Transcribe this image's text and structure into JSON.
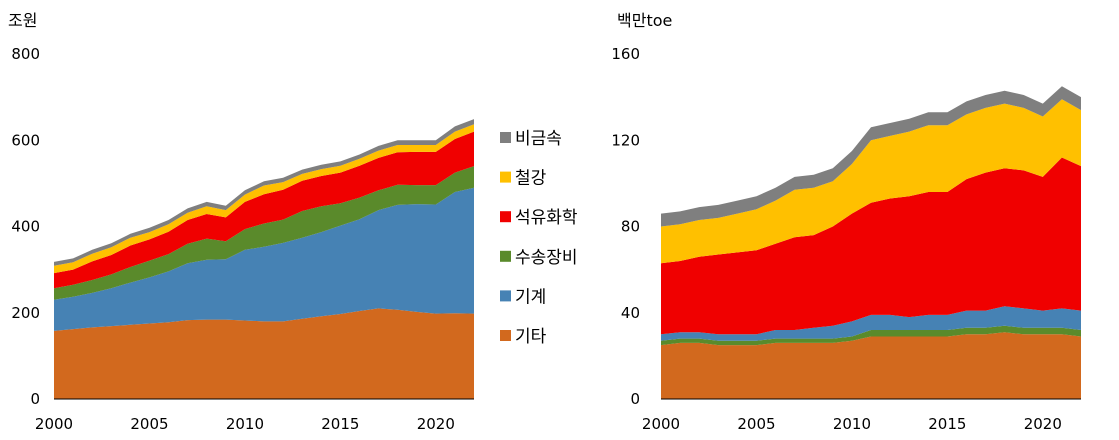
{
  "legend": [
    "비금속",
    "철강",
    "석유화학",
    "수송장비",
    "기계",
    "기타"
  ],
  "colors": {
    "기타": "#D2691E",
    "기계": "#4682B4",
    "수송장비": "#5A8A2B",
    "석유화학": "#F00000",
    "철강": "#FFC000",
    "비금속": "#7F7F7F"
  },
  "chart_data": [
    {
      "type": "area",
      "stacked": true,
      "ylabel": "조원",
      "ylim": [
        0,
        800
      ],
      "yticks": [
        0,
        200,
        400,
        600,
        800
      ],
      "xlim": [
        2000,
        2022
      ],
      "xticks": [
        2000,
        2005,
        2010,
        2015,
        2020
      ],
      "x": [
        2000,
        2001,
        2002,
        2003,
        2004,
        2005,
        2006,
        2007,
        2008,
        2009,
        2010,
        2011,
        2012,
        2013,
        2014,
        2015,
        2016,
        2017,
        2018,
        2019,
        2020,
        2021,
        2022
      ],
      "series": [
        {
          "name": "기타",
          "values": [
            158,
            162,
            166,
            169,
            172,
            175,
            178,
            183,
            184,
            184,
            182,
            180,
            180,
            186,
            192,
            197,
            204,
            210,
            207,
            202,
            198,
            199,
            198
          ]
        },
        {
          "name": "기계",
          "values": [
            72,
            75,
            80,
            88,
            98,
            107,
            118,
            132,
            139,
            140,
            164,
            173,
            182,
            188,
            195,
            205,
            213,
            228,
            243,
            250,
            253,
            281,
            292
          ]
        },
        {
          "name": "수송장비",
          "values": [
            27,
            28,
            30,
            32,
            36,
            39,
            40,
            45,
            49,
            42,
            48,
            54,
            54,
            62,
            60,
            52,
            50,
            46,
            47,
            44,
            45,
            45,
            50
          ]
        },
        {
          "name": "석유화학",
          "values": [
            35,
            35,
            43,
            45,
            50,
            49,
            52,
            55,
            57,
            55,
            63,
            68,
            69,
            70,
            70,
            71,
            74,
            75,
            75,
            77,
            77,
            78,
            80
          ]
        },
        {
          "name": "철강",
          "values": [
            17,
            17,
            18,
            18,
            18,
            17,
            17,
            17,
            18,
            17,
            17,
            20,
            18,
            16,
            16,
            16,
            16,
            17,
            17,
            16,
            16,
            17,
            17
          ]
        },
        {
          "name": "비금속",
          "values": [
            9,
            9,
            9,
            9,
            9,
            10,
            10,
            10,
            10,
            10,
            10,
            10,
            10,
            10,
            10,
            10,
            10,
            11,
            11,
            11,
            11,
            12,
            12
          ]
        }
      ]
    },
    {
      "type": "area",
      "stacked": true,
      "ylabel": "백만toe",
      "ylim": [
        0,
        160
      ],
      "yticks": [
        0,
        40,
        80,
        120,
        160
      ],
      "xlim": [
        2000,
        2022
      ],
      "xticks": [
        2000,
        2005,
        2010,
        2015,
        2020
      ],
      "x": [
        2000,
        2001,
        2002,
        2003,
        2004,
        2005,
        2006,
        2007,
        2008,
        2009,
        2010,
        2011,
        2012,
        2013,
        2014,
        2015,
        2016,
        2017,
        2018,
        2019,
        2020,
        2021,
        2022
      ],
      "series": [
        {
          "name": "기타",
          "values": [
            25,
            26,
            26,
            25,
            25,
            25,
            26,
            26,
            26,
            26,
            27,
            29,
            29,
            29,
            29,
            29,
            30,
            30,
            31,
            30,
            30,
            30,
            29
          ]
        },
        {
          "name": "수송장비",
          "values": [
            2,
            2,
            2,
            2,
            2,
            2,
            2,
            2,
            2,
            2,
            2,
            3,
            3,
            3,
            3,
            3,
            3,
            3,
            3,
            3,
            3,
            3,
            3
          ]
        },
        {
          "name": "기계",
          "values": [
            3,
            3,
            3,
            3,
            3,
            3,
            4,
            4,
            5,
            6,
            7,
            7,
            7,
            6,
            7,
            7,
            8,
            8,
            9,
            9,
            8,
            9,
            9
          ]
        },
        {
          "name": "석유화학",
          "values": [
            33,
            33,
            35,
            37,
            38,
            39,
            40,
            43,
            43,
            46,
            50,
            52,
            54,
            56,
            57,
            57,
            61,
            64,
            64,
            64,
            62,
            70,
            67
          ]
        },
        {
          "name": "철강",
          "values": [
            17,
            17,
            17,
            17,
            18,
            19,
            20,
            22,
            22,
            21,
            23,
            29,
            29,
            30,
            31,
            31,
            30,
            30,
            30,
            29,
            28,
            27,
            26
          ]
        },
        {
          "name": "비금속",
          "values": [
            6,
            6,
            6,
            6,
            6,
            6,
            6,
            6,
            6,
            6,
            6,
            6,
            6,
            6,
            6,
            6,
            6,
            6,
            6,
            6,
            6,
            6,
            6
          ]
        }
      ]
    }
  ]
}
